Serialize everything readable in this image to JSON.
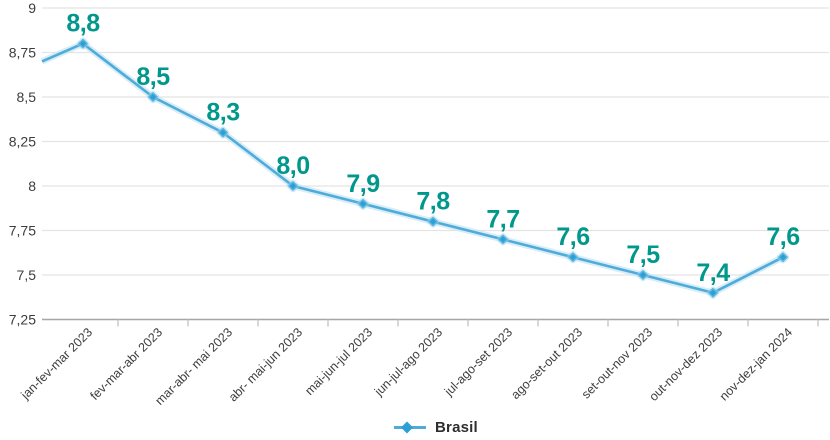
{
  "chart_data": {
    "type": "line",
    "categories": [
      "jan-fev-mar 2023",
      "fev-mar-abr 2023",
      "mar-abr- mai 2023",
      "abr- mai-jun 2023",
      "mai-jun-jul 2023",
      "jun-jul-ago 2023",
      "jul-ago-set 2023",
      "ago-set-out 2023",
      "set-out-nov 2023",
      "out-nov-dez 2023",
      "nov-dez-jan 2024"
    ],
    "series": [
      {
        "name": "Brasil",
        "values": [
          8.8,
          8.5,
          8.3,
          8.0,
          7.9,
          7.8,
          7.7,
          7.6,
          7.5,
          7.4,
          7.6
        ]
      }
    ],
    "point_labels": [
      "8,8",
      "8,5",
      "8,3",
      "8,0",
      "7,9",
      "7,8",
      "7,7",
      "7,6",
      "7,5",
      "7,4",
      "7,6"
    ],
    "yticks_values": [
      9,
      8.75,
      8.5,
      8.25,
      8,
      7.75,
      7.5,
      7.25
    ],
    "yticks_labels": [
      "9",
      "8,75",
      "8,5",
      "8,25",
      "8",
      "7,75",
      "7,5",
      "7,25"
    ],
    "ylim": [
      7.25,
      9
    ],
    "lead_in_value_at_left_edge": 8.7,
    "grid": "horizontal",
    "legend": {
      "position": "bottom-center",
      "items": [
        {
          "label": "Brasil"
        }
      ]
    },
    "colors": {
      "line": "#4FABD9",
      "line_halo": "#C9E7F5",
      "marker": "#2C9FD6",
      "marker_halo": "#9AD2EC",
      "point_label": "#00978C",
      "axis_text": "#3D3D3D",
      "gridline": "#E4E4E4",
      "axis_line": "#A6A6A6",
      "tick": "#C4C4C4",
      "legend_text": "#2F2F2F"
    }
  }
}
